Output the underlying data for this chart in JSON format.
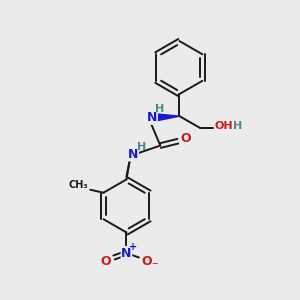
{
  "background_color": "#ebebeb",
  "figsize": [
    3.0,
    3.0
  ],
  "dpi": 100,
  "bond_color": "#1a1a1a",
  "bond_width": 1.4,
  "atom_colors": {
    "N": "#1a1acc",
    "O": "#cc1a1a",
    "C": "#1a1a1a",
    "H": "#4a8a8a"
  },
  "font_size": 9
}
